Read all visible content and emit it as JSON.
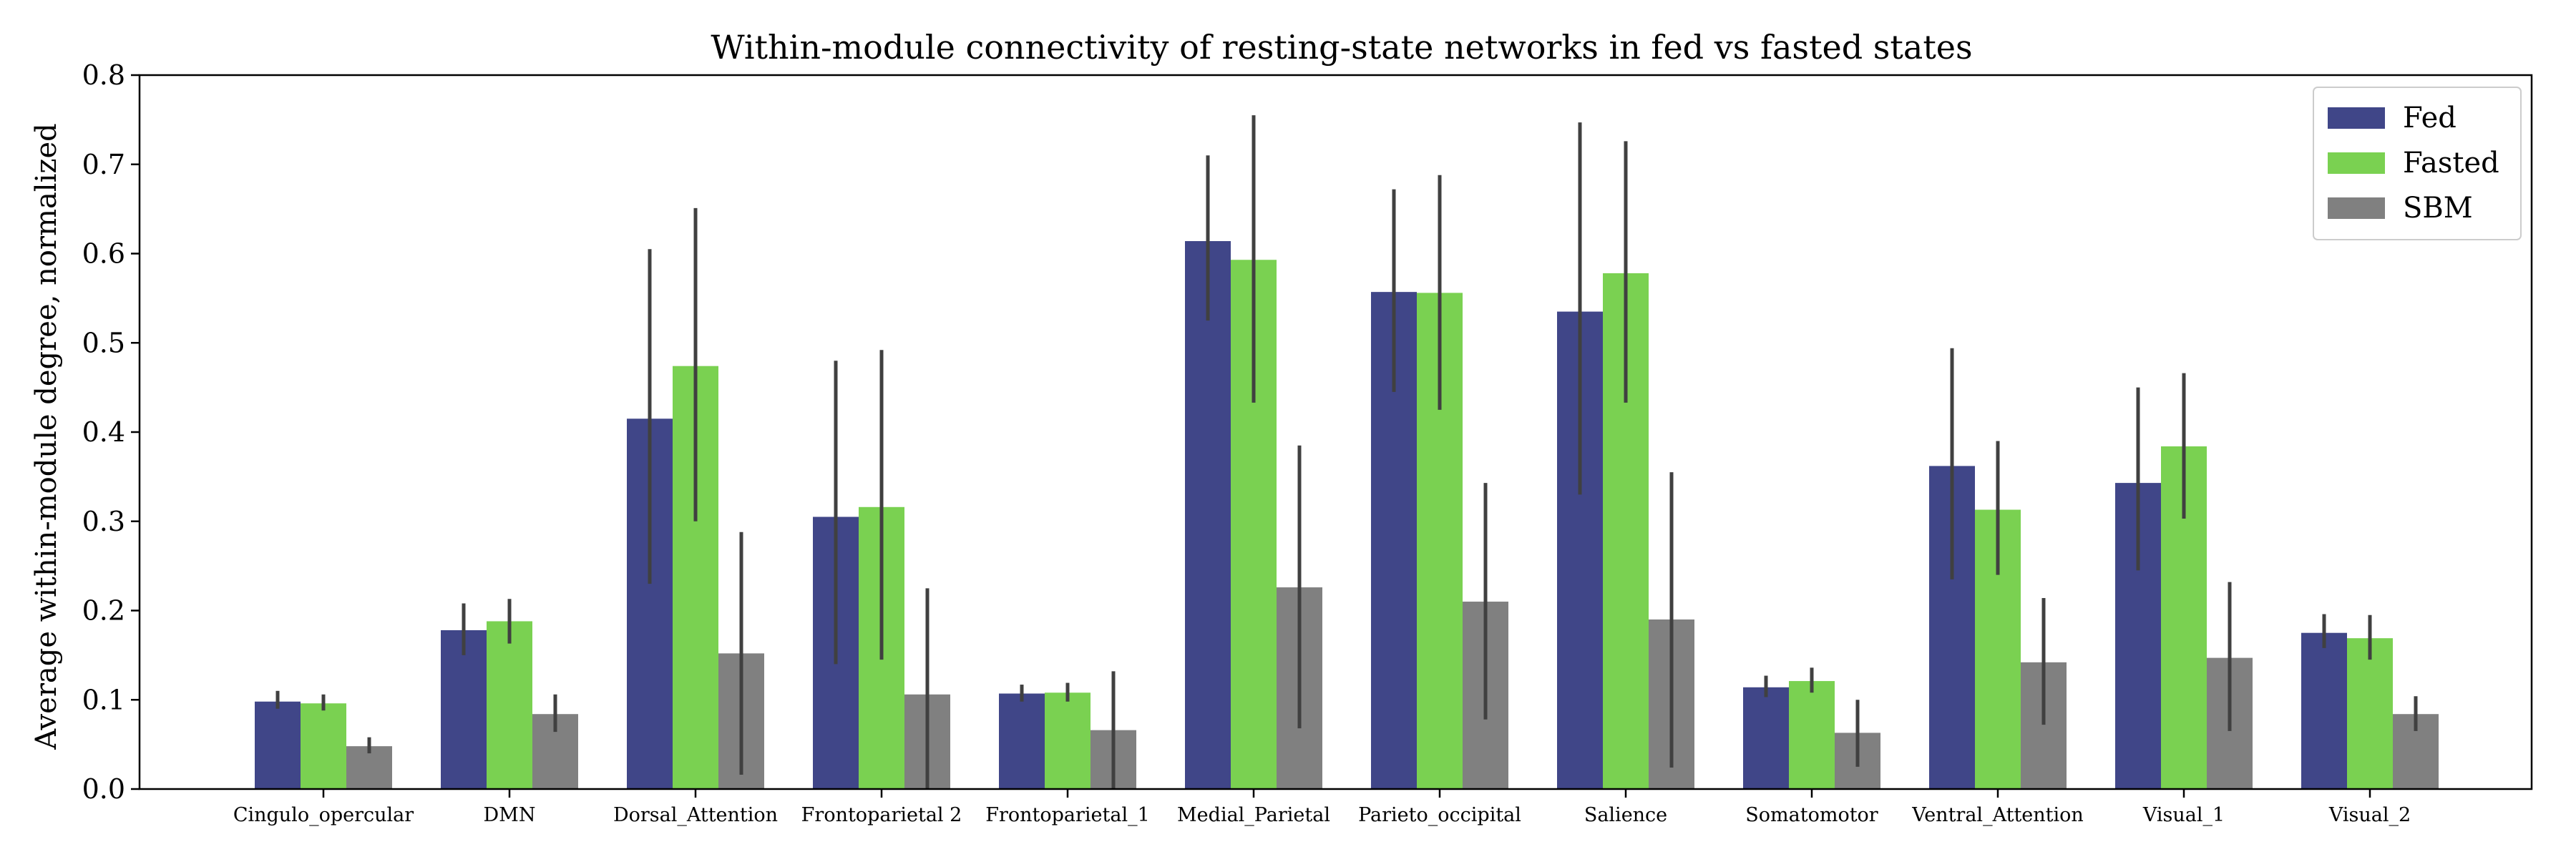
{
  "chart_data": {
    "type": "bar",
    "title": "Within-module connectivity of resting-state networks in fed vs fasted states",
    "xlabel": "",
    "ylabel": "Average within-module degree, normalized",
    "ylim": [
      0,
      0.8
    ],
    "yticks": [
      "0.0",
      "0.1",
      "0.2",
      "0.3",
      "0.4",
      "0.5",
      "0.6",
      "0.7",
      "0.8"
    ],
    "grid": false,
    "legend_position": "top-right",
    "categories": [
      "Cingulo_opercular",
      "DMN",
      "Dorsal_Attention",
      "Frontoparietal 2",
      "Frontoparietal_1",
      "Medial_Parietal",
      "Parieto_occipital",
      "Salience",
      "Somatomotor",
      "Ventral_Attention",
      "Visual_1",
      "Visual_2"
    ],
    "series": [
      {
        "name": "Fed",
        "color": "#404688",
        "values": [
          0.098,
          0.178,
          0.415,
          0.305,
          0.107,
          0.614,
          0.557,
          0.535,
          0.114,
          0.362,
          0.343,
          0.175
        ],
        "err_low": [
          0.09,
          0.15,
          0.23,
          0.14,
          0.098,
          0.525,
          0.445,
          0.33,
          0.103,
          0.235,
          0.245,
          0.158
        ],
        "err_high": [
          0.11,
          0.208,
          0.605,
          0.48,
          0.117,
          0.71,
          0.672,
          0.747,
          0.127,
          0.494,
          0.45,
          0.196
        ]
      },
      {
        "name": "Fasted",
        "color": "#7ad151",
        "values": [
          0.096,
          0.188,
          0.474,
          0.316,
          0.108,
          0.593,
          0.556,
          0.578,
          0.121,
          0.313,
          0.384,
          0.169
        ],
        "err_low": [
          0.088,
          0.163,
          0.3,
          0.145,
          0.098,
          0.433,
          0.425,
          0.433,
          0.108,
          0.24,
          0.303,
          0.145
        ],
        "err_high": [
          0.106,
          0.213,
          0.651,
          0.492,
          0.119,
          0.755,
          0.688,
          0.726,
          0.136,
          0.39,
          0.466,
          0.195
        ]
      },
      {
        "name": "SBM",
        "color": "#808080",
        "values": [
          0.048,
          0.084,
          0.152,
          0.106,
          0.066,
          0.226,
          0.21,
          0.19,
          0.063,
          0.142,
          0.147,
          0.084
        ],
        "err_low": [
          0.04,
          0.064,
          0.016,
          0.0,
          0.0,
          0.068,
          0.078,
          0.024,
          0.025,
          0.072,
          0.065,
          0.065
        ],
        "err_high": [
          0.058,
          0.106,
          0.288,
          0.225,
          0.132,
          0.385,
          0.343,
          0.355,
          0.1,
          0.214,
          0.232,
          0.104
        ]
      }
    ]
  }
}
